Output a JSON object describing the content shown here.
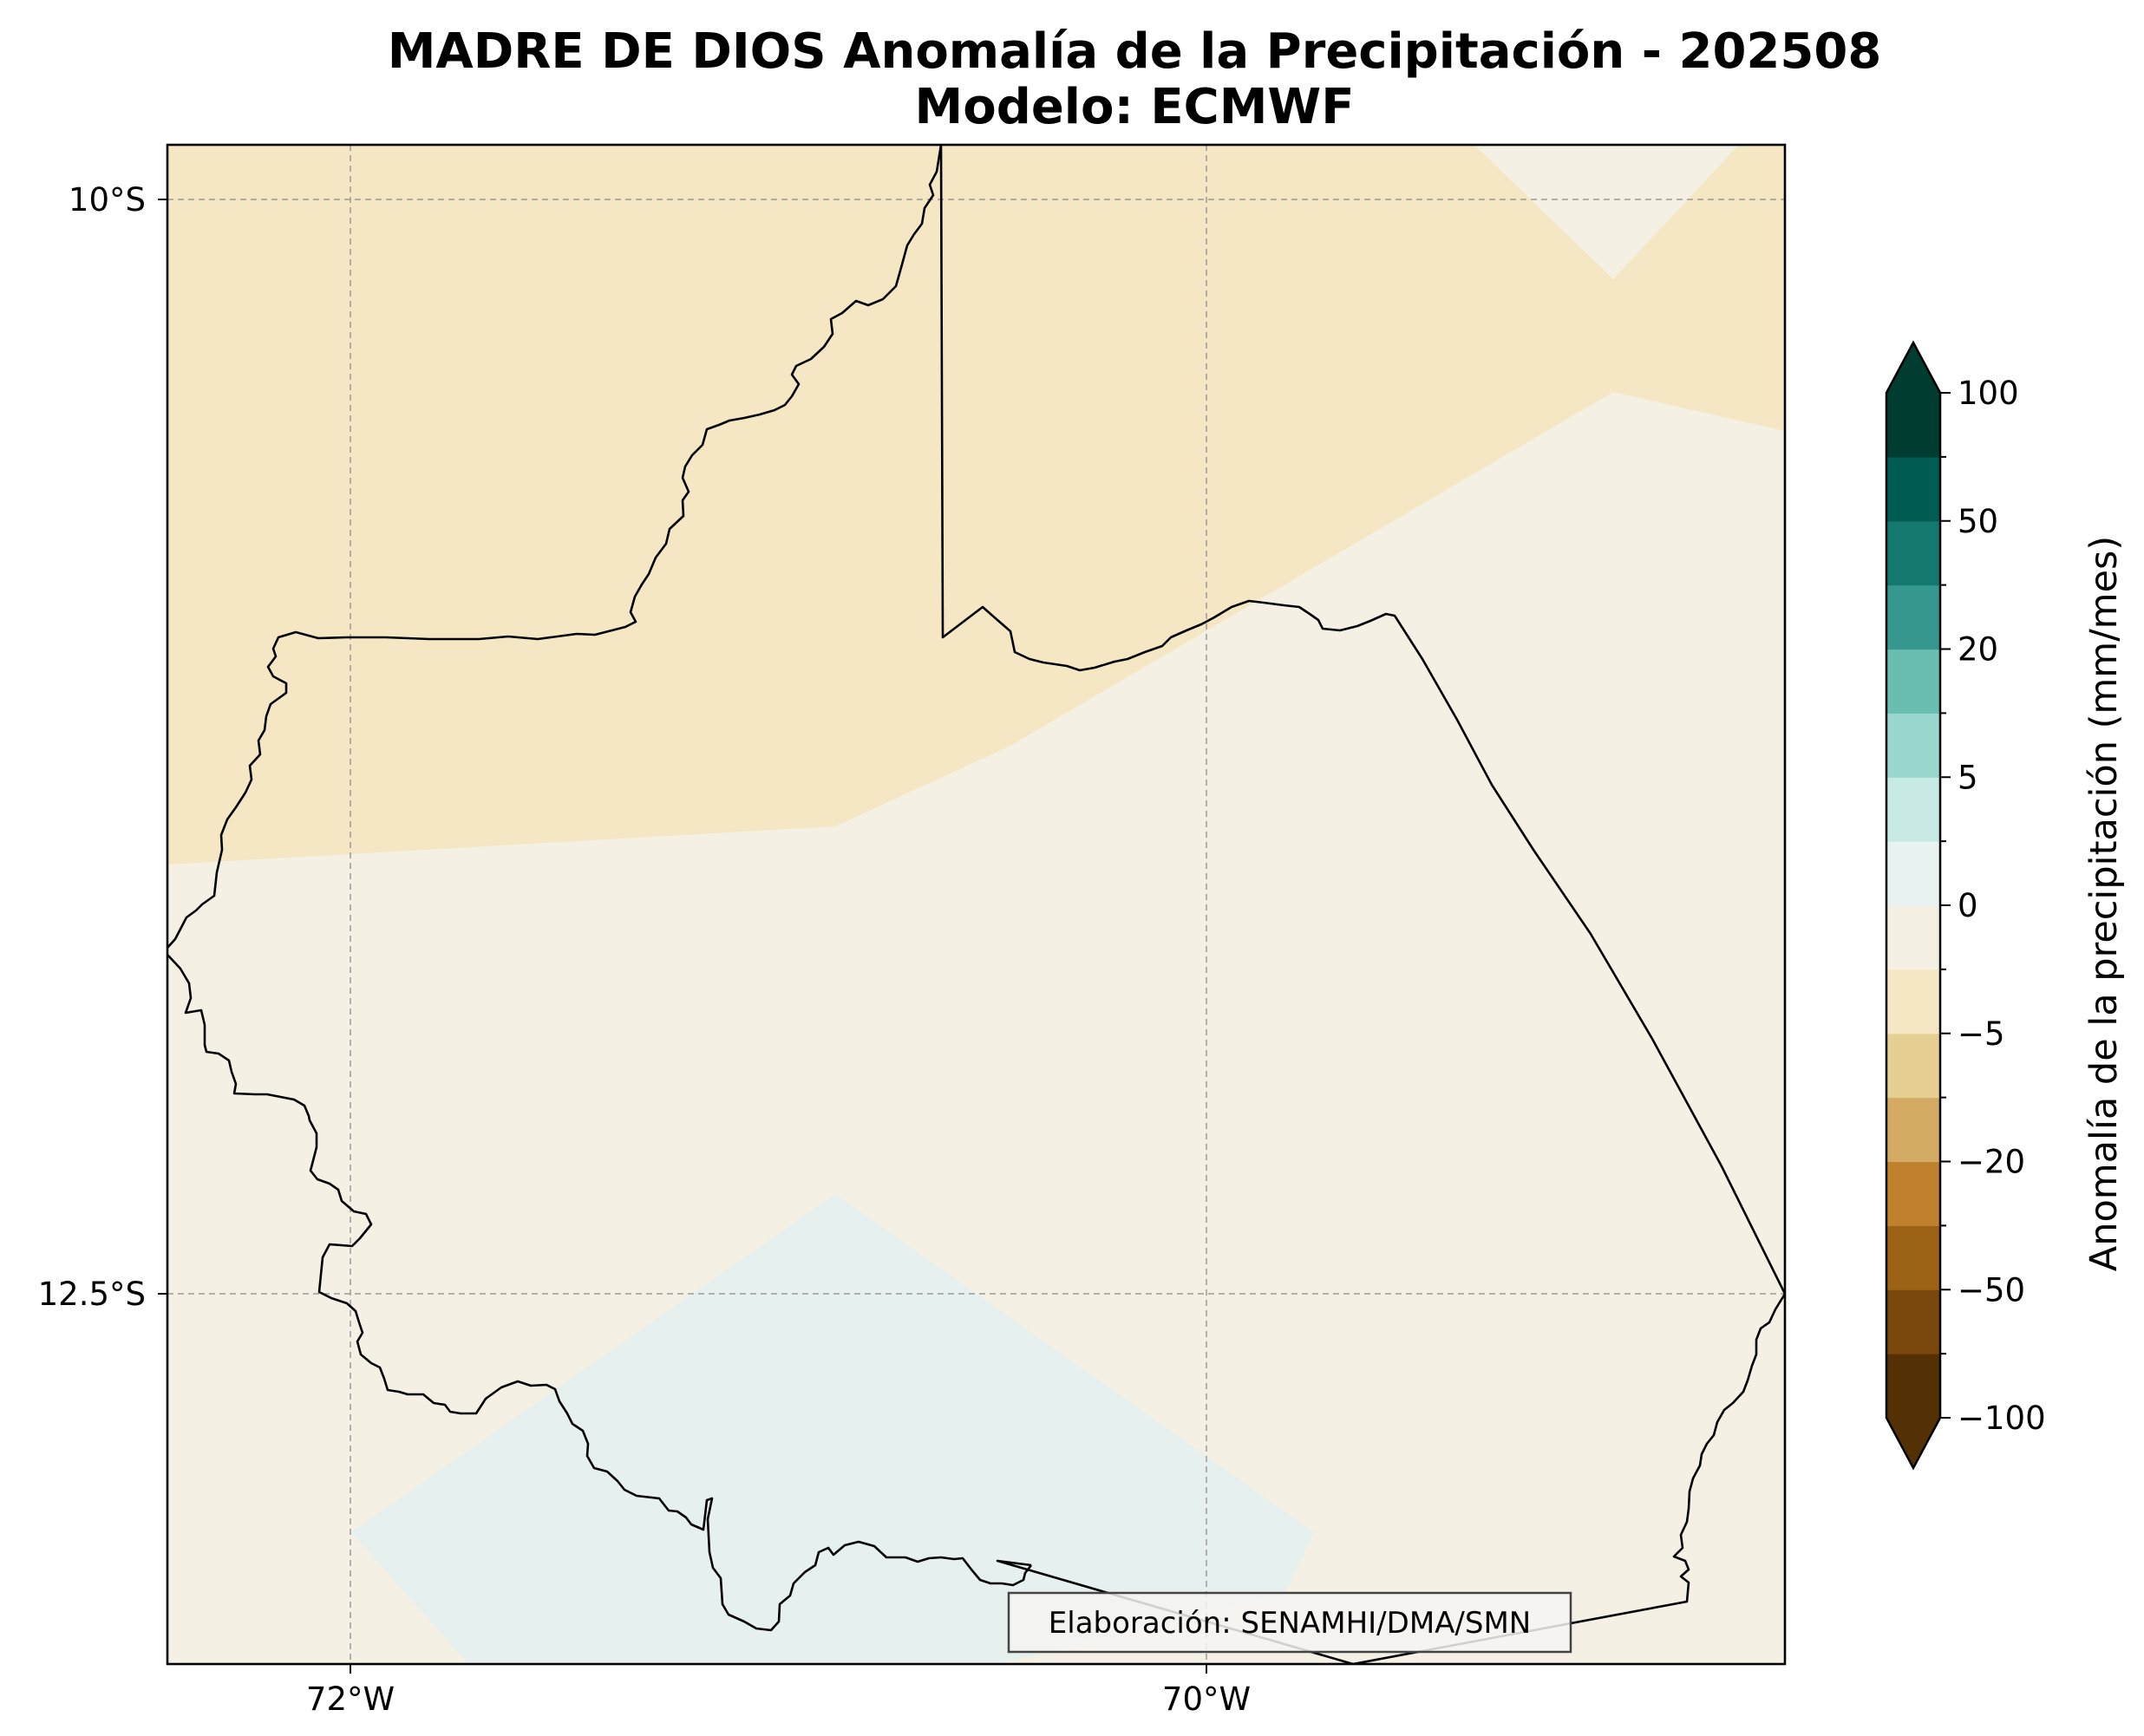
{
  "title": {
    "line1": "MADRE DE DIOS Anomalía de la Precipitación - 202508",
    "line2": "Modelo: ECMWF"
  },
  "map": {
    "lon_ticks": [
      {
        "value": -72,
        "label": "72°W"
      },
      {
        "value": -70,
        "label": "70°W"
      }
    ],
    "lat_ticks": [
      {
        "value": -10,
        "label": "10°S"
      },
      {
        "value": -12.5,
        "label": "12.5°S"
      }
    ],
    "gridlines": true,
    "colors": {
      "fill_minus5_0": "#f5e7c3",
      "fill_0_plus": "#f5f0e4",
      "fill_0_5": "#e6f0ee",
      "border": "#000000"
    },
    "regions": [
      {
        "name": "north",
        "anomaly_range": "-5 a 0"
      },
      {
        "name": "center",
        "anomaly_range": "0"
      },
      {
        "name": "south",
        "anomaly_range": "0 a 5"
      }
    ],
    "credit": "Elaboración: SENAMHI/DMA/SMN"
  },
  "colorbar": {
    "label": "Anomalía de la precipitación (mm/mes)",
    "tick_labels": [
      "−100",
      "−50",
      "−20",
      "−5",
      "0",
      "5",
      "20",
      "50",
      "100"
    ],
    "extend": "both",
    "colors": [
      "#543005",
      "#7a470c",
      "#9c6215",
      "#bf812d",
      "#d4ab62",
      "#e5cf93",
      "#f5e7c3",
      "#f5f0e4",
      "#e8f3f1",
      "#c7eae5",
      "#9ad8cf",
      "#6abdb1",
      "#35978f",
      "#137970",
      "#015c54",
      "#003c30"
    ]
  }
}
